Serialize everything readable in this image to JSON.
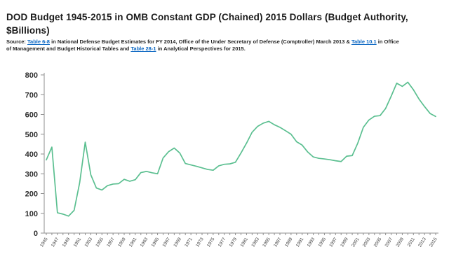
{
  "header": {
    "title": "DOD Budget  1945-2015 in OMB Constant GDP (Chained) 2015 Dollars (Budget Authority, $Billions)",
    "source": {
      "prefix": "Source: ",
      "link1": "Table 6-8",
      "text1": " in National Defense Budget Estimates for FY 2014, Office of the Under Secretary of Defense (Comptroller) March 2013 & ",
      "link2": "Table 10.1",
      "text2": " in  Office of Management and Budget Historical Tables  and ",
      "link3": "Table 28-1",
      "text3": " in Analytical Perspectives for  2015."
    }
  },
  "chart_data": {
    "type": "line",
    "title": "DOD Budget 1945-2015 in OMB Constant GDP (Chained) 2015 Dollars (Budget Authority, $Billions)",
    "xlabel": "",
    "ylabel": "",
    "ylim": [
      0,
      800
    ],
    "ytick_step": 100,
    "xtick_label_step": 2,
    "grid": false,
    "legend": null,
    "line_color": "#5bbf90",
    "x": [
      1945,
      1946,
      1947,
      1948,
      1949,
      1950,
      1951,
      1952,
      1953,
      1954,
      1955,
      1956,
      1957,
      1958,
      1959,
      1960,
      1961,
      1962,
      1963,
      1964,
      1965,
      1966,
      1967,
      1968,
      1969,
      1970,
      1971,
      1972,
      1973,
      1974,
      1975,
      1976,
      1977,
      1978,
      1979,
      1980,
      1981,
      1982,
      1983,
      1984,
      1985,
      1986,
      1987,
      1988,
      1989,
      1990,
      1991,
      1992,
      1993,
      1994,
      1995,
      1996,
      1997,
      1998,
      1999,
      2000,
      2001,
      2002,
      2003,
      2004,
      2005,
      2006,
      2007,
      2008,
      2009,
      2010,
      2011,
      2012,
      2013,
      2014,
      2015
    ],
    "values": [
      370,
      435,
      103,
      96,
      86,
      115,
      255,
      460,
      295,
      228,
      218,
      240,
      248,
      250,
      272,
      262,
      270,
      306,
      312,
      305,
      300,
      380,
      412,
      430,
      405,
      352,
      345,
      338,
      330,
      322,
      318,
      340,
      348,
      350,
      358,
      405,
      455,
      510,
      540,
      556,
      565,
      548,
      535,
      518,
      500,
      462,
      445,
      410,
      385,
      378,
      375,
      371,
      366,
      362,
      389,
      392,
      455,
      535,
      572,
      591,
      594,
      630,
      692,
      758,
      742,
      763,
      725,
      678,
      640,
      605,
      590
    ]
  }
}
